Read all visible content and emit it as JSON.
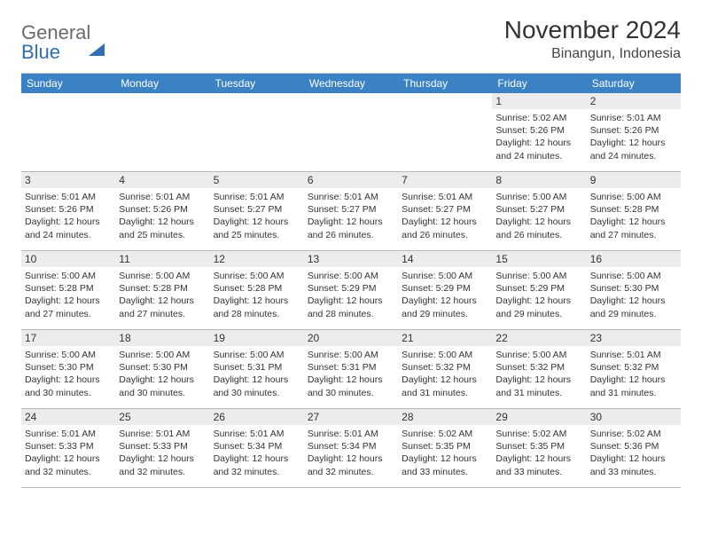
{
  "brand": {
    "part1": "General",
    "part2": "Blue"
  },
  "title": "November 2024",
  "location": "Binangun, Indonesia",
  "header_bg": "#3b82c4",
  "weekdays": [
    "Sunday",
    "Monday",
    "Tuesday",
    "Wednesday",
    "Thursday",
    "Friday",
    "Saturday"
  ],
  "weeks": [
    [
      null,
      null,
      null,
      null,
      null,
      {
        "n": "1",
        "sr": "5:02 AM",
        "ss": "5:26 PM",
        "dl": "12 hours and 24 minutes."
      },
      {
        "n": "2",
        "sr": "5:01 AM",
        "ss": "5:26 PM",
        "dl": "12 hours and 24 minutes."
      }
    ],
    [
      {
        "n": "3",
        "sr": "5:01 AM",
        "ss": "5:26 PM",
        "dl": "12 hours and 24 minutes."
      },
      {
        "n": "4",
        "sr": "5:01 AM",
        "ss": "5:26 PM",
        "dl": "12 hours and 25 minutes."
      },
      {
        "n": "5",
        "sr": "5:01 AM",
        "ss": "5:27 PM",
        "dl": "12 hours and 25 minutes."
      },
      {
        "n": "6",
        "sr": "5:01 AM",
        "ss": "5:27 PM",
        "dl": "12 hours and 26 minutes."
      },
      {
        "n": "7",
        "sr": "5:01 AM",
        "ss": "5:27 PM",
        "dl": "12 hours and 26 minutes."
      },
      {
        "n": "8",
        "sr": "5:00 AM",
        "ss": "5:27 PM",
        "dl": "12 hours and 26 minutes."
      },
      {
        "n": "9",
        "sr": "5:00 AM",
        "ss": "5:28 PM",
        "dl": "12 hours and 27 minutes."
      }
    ],
    [
      {
        "n": "10",
        "sr": "5:00 AM",
        "ss": "5:28 PM",
        "dl": "12 hours and 27 minutes."
      },
      {
        "n": "11",
        "sr": "5:00 AM",
        "ss": "5:28 PM",
        "dl": "12 hours and 27 minutes."
      },
      {
        "n": "12",
        "sr": "5:00 AM",
        "ss": "5:28 PM",
        "dl": "12 hours and 28 minutes."
      },
      {
        "n": "13",
        "sr": "5:00 AM",
        "ss": "5:29 PM",
        "dl": "12 hours and 28 minutes."
      },
      {
        "n": "14",
        "sr": "5:00 AM",
        "ss": "5:29 PM",
        "dl": "12 hours and 29 minutes."
      },
      {
        "n": "15",
        "sr": "5:00 AM",
        "ss": "5:29 PM",
        "dl": "12 hours and 29 minutes."
      },
      {
        "n": "16",
        "sr": "5:00 AM",
        "ss": "5:30 PM",
        "dl": "12 hours and 29 minutes."
      }
    ],
    [
      {
        "n": "17",
        "sr": "5:00 AM",
        "ss": "5:30 PM",
        "dl": "12 hours and 30 minutes."
      },
      {
        "n": "18",
        "sr": "5:00 AM",
        "ss": "5:30 PM",
        "dl": "12 hours and 30 minutes."
      },
      {
        "n": "19",
        "sr": "5:00 AM",
        "ss": "5:31 PM",
        "dl": "12 hours and 30 minutes."
      },
      {
        "n": "20",
        "sr": "5:00 AM",
        "ss": "5:31 PM",
        "dl": "12 hours and 30 minutes."
      },
      {
        "n": "21",
        "sr": "5:00 AM",
        "ss": "5:32 PM",
        "dl": "12 hours and 31 minutes."
      },
      {
        "n": "22",
        "sr": "5:00 AM",
        "ss": "5:32 PM",
        "dl": "12 hours and 31 minutes."
      },
      {
        "n": "23",
        "sr": "5:01 AM",
        "ss": "5:32 PM",
        "dl": "12 hours and 31 minutes."
      }
    ],
    [
      {
        "n": "24",
        "sr": "5:01 AM",
        "ss": "5:33 PM",
        "dl": "12 hours and 32 minutes."
      },
      {
        "n": "25",
        "sr": "5:01 AM",
        "ss": "5:33 PM",
        "dl": "12 hours and 32 minutes."
      },
      {
        "n": "26",
        "sr": "5:01 AM",
        "ss": "5:34 PM",
        "dl": "12 hours and 32 minutes."
      },
      {
        "n": "27",
        "sr": "5:01 AM",
        "ss": "5:34 PM",
        "dl": "12 hours and 32 minutes."
      },
      {
        "n": "28",
        "sr": "5:02 AM",
        "ss": "5:35 PM",
        "dl": "12 hours and 33 minutes."
      },
      {
        "n": "29",
        "sr": "5:02 AM",
        "ss": "5:35 PM",
        "dl": "12 hours and 33 minutes."
      },
      {
        "n": "30",
        "sr": "5:02 AM",
        "ss": "5:36 PM",
        "dl": "12 hours and 33 minutes."
      }
    ]
  ],
  "labels": {
    "sunrise": "Sunrise: ",
    "sunset": "Sunset: ",
    "daylight": "Daylight: "
  }
}
